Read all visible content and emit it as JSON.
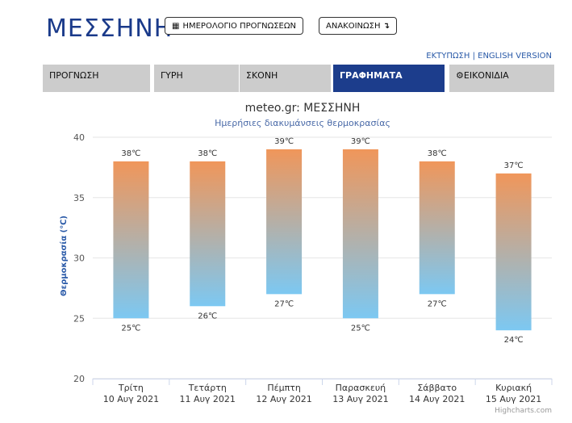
{
  "header": {
    "city": "ΜΕΣΣΗΝΗ",
    "calendar_button": "ΗΜΕΡΟΛΟΓΙΟ ΠΡΟΓΝΩΣΕΩΝ",
    "announcement_button": "ΑΝΑΚΟΙΝΩΣΗ",
    "print_link": "ΕΚΤΥΠΩΣΗ",
    "separator": " | ",
    "english_link": "ENGLISH VERSION"
  },
  "tabs": [
    {
      "label": "ΠΡΟΓΝΩΣΗ"
    },
    {
      "label": "ΓΥΡΗ"
    },
    {
      "label": "ΣΚΟΝΗ"
    },
    {
      "label": "ΓΡΑΦΗΜΑΤΑ"
    },
    {
      "label": "ΕΙΚΟΝΙΔΙΑ"
    }
  ],
  "chart_data": {
    "type": "bar",
    "title": "meteo.gr: ΜΕΣΣΗΝΗ",
    "subtitle": "Ημερήσιες διακυμάνσεις θερμοκρασίας",
    "ylabel": "Θερμοκρασία (℃)",
    "ylim": [
      20,
      40
    ],
    "yticks": [
      20,
      25,
      30,
      35,
      40
    ],
    "categories": [
      "Τρίτη",
      "Τετάρτη",
      "Πέμπτη",
      "Παρασκευή",
      "Σάββατο",
      "Κυριακή"
    ],
    "dates": [
      "10 Αυγ 2021",
      "11 Αυγ 2021",
      "12 Αυγ 2021",
      "13 Αυγ 2021",
      "14 Αυγ 2021",
      "15 Αυγ 2021"
    ],
    "low": [
      25,
      26,
      27,
      25,
      27,
      24
    ],
    "high": [
      38,
      38,
      39,
      39,
      38,
      37
    ],
    "unit": "℃",
    "colors": {
      "warm": "#f0965a",
      "cool": "#7cc8f2",
      "title": "#333333",
      "subtitle": "#4a6aa8",
      "axis_title": "#2a5aa8"
    },
    "credits": "Highcharts.com"
  }
}
